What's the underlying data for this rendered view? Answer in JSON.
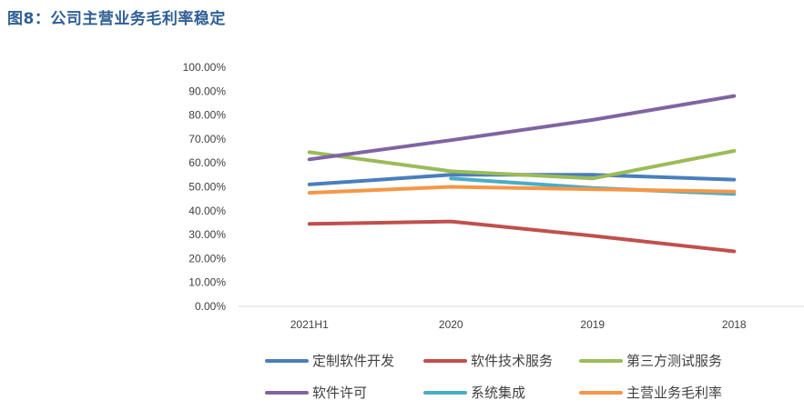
{
  "figure_title": "图8：公司主营业务毛利率稳定",
  "chart_data": {
    "type": "line",
    "title": "图8：公司主营业务毛利率稳定",
    "xlabel": "",
    "ylabel": "",
    "categories": [
      "2021H1",
      "2020",
      "2019",
      "2018"
    ],
    "y_ticks": [
      "0.00%",
      "10.00%",
      "20.00%",
      "30.00%",
      "40.00%",
      "50.00%",
      "60.00%",
      "70.00%",
      "80.00%",
      "90.00%",
      "100.00%"
    ],
    "ylim": [
      0,
      100
    ],
    "grid": false,
    "legend_position": "bottom",
    "series": [
      {
        "name": "定制软件开发",
        "color": "#4a7ebb",
        "values": [
          51,
          55,
          55,
          53
        ]
      },
      {
        "name": "软件技术服务",
        "color": "#c0504d",
        "values": [
          34.5,
          35.5,
          29.5,
          23
        ]
      },
      {
        "name": "第三方测试服务",
        "color": "#9bbb59",
        "values": [
          64.5,
          56.5,
          53.5,
          65
        ]
      },
      {
        "name": "软件许可",
        "color": "#8064a2",
        "values": [
          61.5,
          69.5,
          78,
          88
        ]
      },
      {
        "name": "系统集成",
        "color": "#4bacc6",
        "values": [
          null,
          53.5,
          49.5,
          47
        ]
      },
      {
        "name": "主营业务毛利率",
        "color": "#f79646",
        "values": [
          47.5,
          50,
          49,
          48
        ]
      }
    ]
  }
}
